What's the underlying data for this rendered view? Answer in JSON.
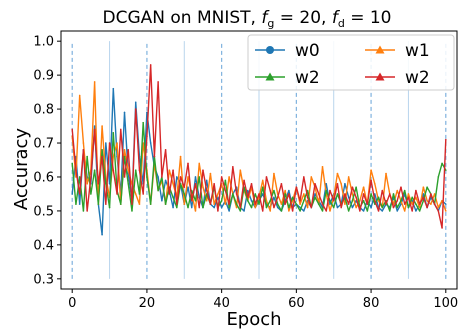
{
  "chart_data": {
    "type": "line",
    "title": "DCGAN on MNIST, f_g = 20, f_d = 10",
    "title_parts": {
      "prefix": "DCGAN on MNIST, ",
      "fg": "f",
      "fg_sub": "g",
      "eq1": " = 20, ",
      "fd": "f",
      "fd_sub": "d",
      "eq2": " = 10"
    },
    "xlabel": "Epoch",
    "ylabel": "Accuracy",
    "xlim": [
      -3,
      103
    ],
    "ylim": [
      0.27,
      1.03
    ],
    "xticks": [
      0,
      20,
      40,
      60,
      80,
      100
    ],
    "xtick_labels": [
      "0",
      "20",
      "40",
      "60",
      "80",
      "100"
    ],
    "yticks": [
      0.3,
      0.4,
      0.5,
      0.6,
      0.7,
      0.8,
      0.9,
      1.0
    ],
    "ytick_labels": [
      "0.3",
      "0.4",
      "0.5",
      "0.6",
      "0.7",
      "0.8",
      "0.9",
      "1.0"
    ],
    "vlines": {
      "dashed": [
        0,
        20,
        40,
        60,
        80,
        100
      ],
      "solid": [
        10,
        30,
        50,
        70,
        90
      ],
      "ymin": 0.3,
      "ymax": 1.0,
      "color": "#7fb2de"
    },
    "legend_position": "top-right",
    "series": [
      {
        "name": "w0",
        "color": "#1f77b4",
        "marker": "circle",
        "values": [
          0.55,
          0.66,
          0.52,
          0.68,
          0.6,
          0.58,
          0.75,
          0.52,
          0.43,
          0.7,
          0.58,
          0.86,
          0.66,
          0.55,
          0.79,
          0.61,
          0.53,
          0.82,
          0.66,
          0.58,
          0.79,
          0.7,
          0.63,
          0.6,
          0.53,
          0.59,
          0.56,
          0.51,
          0.6,
          0.58,
          0.52,
          0.57,
          0.51,
          0.6,
          0.54,
          0.51,
          0.59,
          0.52,
          0.51,
          0.54,
          0.51,
          0.53,
          0.5,
          0.55,
          0.57,
          0.51,
          0.5,
          0.56,
          0.53,
          0.51,
          0.53,
          0.55,
          0.52,
          0.51,
          0.54,
          0.51,
          0.5,
          0.53,
          0.56,
          0.51,
          0.52,
          0.51,
          0.5,
          0.53,
          0.51,
          0.55,
          0.53,
          0.51,
          0.58,
          0.52,
          0.55,
          0.51,
          0.52,
          0.58,
          0.54,
          0.51,
          0.53,
          0.51,
          0.5,
          0.53,
          0.51,
          0.55,
          0.51,
          0.5,
          0.52,
          0.51,
          0.54,
          0.5,
          0.52,
          0.55,
          0.51,
          0.53,
          0.5,
          0.52,
          0.55,
          0.51,
          0.54,
          0.52,
          0.5,
          0.53,
          0.52
        ]
      },
      {
        "name": "w1",
        "color": "#ff7f0e",
        "marker": "triangle",
        "values": [
          0.72,
          0.6,
          0.84,
          0.7,
          0.58,
          0.62,
          0.88,
          0.52,
          0.75,
          0.6,
          0.54,
          0.66,
          0.7,
          0.52,
          0.68,
          0.62,
          0.58,
          0.55,
          0.52,
          0.7,
          0.62,
          0.52,
          0.64,
          0.56,
          0.59,
          0.52,
          0.62,
          0.58,
          0.54,
          0.66,
          0.52,
          0.6,
          0.55,
          0.5,
          0.64,
          0.57,
          0.53,
          0.61,
          0.52,
          0.55,
          0.58,
          0.52,
          0.6,
          0.55,
          0.51,
          0.62,
          0.56,
          0.53,
          0.57,
          0.51,
          0.54,
          0.59,
          0.53,
          0.5,
          0.61,
          0.55,
          0.52,
          0.56,
          0.5,
          0.53,
          0.57,
          0.52,
          0.55,
          0.51,
          0.6,
          0.57,
          0.52,
          0.63,
          0.55,
          0.5,
          0.54,
          0.61,
          0.58,
          0.52,
          0.6,
          0.55,
          0.51,
          0.53,
          0.57,
          0.52,
          0.62,
          0.58,
          0.53,
          0.51,
          0.61,
          0.55,
          0.52,
          0.56,
          0.53,
          0.5,
          0.55,
          0.52,
          0.54,
          0.51,
          0.57,
          0.53,
          0.52,
          0.55,
          0.51,
          0.53,
          0.5
        ]
      },
      {
        "name": "w2",
        "color": "#2ca02c",
        "marker": "triangle",
        "values": [
          0.64,
          0.52,
          0.6,
          0.5,
          0.66,
          0.55,
          0.62,
          0.52,
          0.68,
          0.58,
          0.51,
          0.73,
          0.56,
          0.52,
          0.66,
          0.58,
          0.5,
          0.62,
          0.55,
          0.76,
          0.6,
          0.52,
          0.66,
          0.56,
          0.6,
          0.52,
          0.57,
          0.54,
          0.51,
          0.58,
          0.55,
          0.51,
          0.56,
          0.53,
          0.6,
          0.51,
          0.55,
          0.52,
          0.57,
          0.51,
          0.53,
          0.59,
          0.51,
          0.55,
          0.52,
          0.5,
          0.57,
          0.53,
          0.51,
          0.55,
          0.52,
          0.57,
          0.51,
          0.53,
          0.56,
          0.52,
          0.5,
          0.55,
          0.51,
          0.54,
          0.52,
          0.5,
          0.53,
          0.56,
          0.51,
          0.54,
          0.52,
          0.5,
          0.56,
          0.53,
          0.51,
          0.55,
          0.52,
          0.54,
          0.5,
          0.53,
          0.57,
          0.51,
          0.53,
          0.5,
          0.55,
          0.52,
          0.54,
          0.51,
          0.53,
          0.5,
          0.55,
          0.51,
          0.53,
          0.56,
          0.51,
          0.54,
          0.52,
          0.5,
          0.53,
          0.57,
          0.55,
          0.52,
          0.6,
          0.64,
          0.62
        ]
      },
      {
        "name": "w2",
        "color": "#d62728",
        "marker": "triangle",
        "values": [
          0.74,
          0.62,
          0.55,
          0.68,
          0.5,
          0.6,
          0.74,
          0.58,
          0.66,
          0.52,
          0.7,
          0.62,
          0.55,
          0.74,
          0.6,
          0.68,
          0.52,
          0.8,
          0.62,
          0.55,
          0.72,
          0.93,
          0.66,
          0.88,
          0.6,
          0.68,
          0.55,
          0.62,
          0.52,
          0.6,
          0.57,
          0.64,
          0.53,
          0.58,
          0.51,
          0.62,
          0.56,
          0.52,
          0.58,
          0.5,
          0.6,
          0.56,
          0.52,
          0.63,
          0.55,
          0.51,
          0.59,
          0.54,
          0.58,
          0.52,
          0.55,
          0.5,
          0.6,
          0.56,
          0.51,
          0.54,
          0.58,
          0.52,
          0.55,
          0.5,
          0.57,
          0.53,
          0.6,
          0.54,
          0.51,
          0.58,
          0.55,
          0.52,
          0.5,
          0.56,
          0.53,
          0.58,
          0.51,
          0.55,
          0.52,
          0.57,
          0.54,
          0.5,
          0.55,
          0.52,
          0.59,
          0.53,
          0.5,
          0.56,
          0.52,
          0.55,
          0.51,
          0.53,
          0.57,
          0.52,
          0.54,
          0.5,
          0.56,
          0.52,
          0.54,
          0.51,
          0.55,
          0.52,
          0.5,
          0.45,
          0.71
        ]
      }
    ]
  }
}
